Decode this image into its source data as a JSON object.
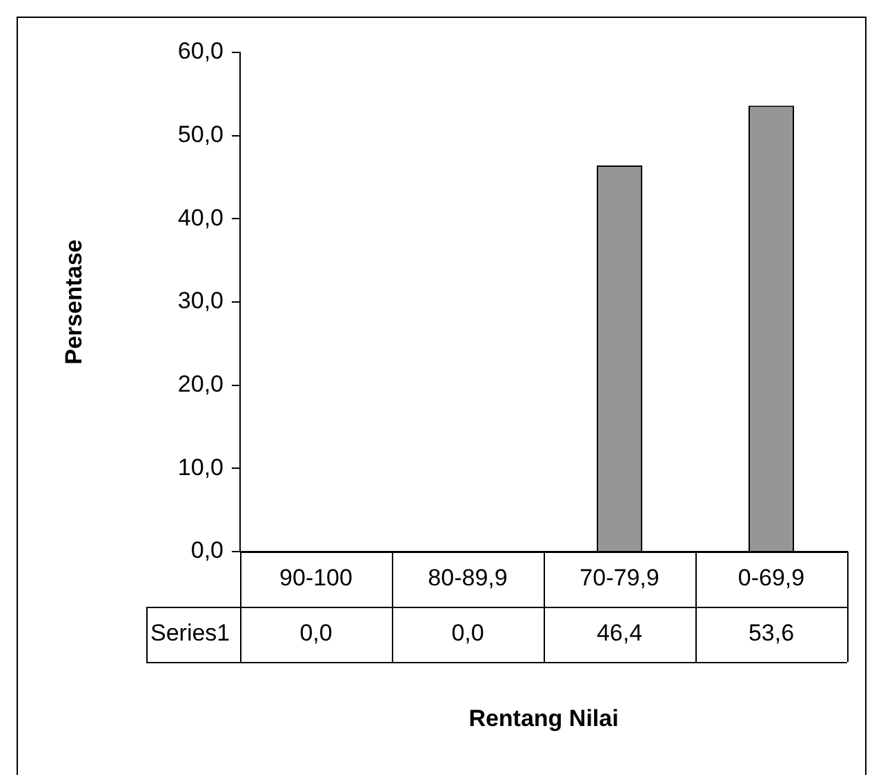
{
  "chart_data": {
    "type": "bar",
    "xlabel": "Rentang Nilai",
    "ylabel": "Persentase",
    "categories": [
      "90-100",
      "80-89,9",
      "70-79,9",
      "0-69,9"
    ],
    "series": [
      {
        "name": "Series1",
        "color": "#969696",
        "values": [
          0.0,
          0.0,
          46.4,
          53.6
        ],
        "value_labels": [
          "0,0",
          "0,0",
          "46,4",
          "53,6"
        ]
      }
    ],
    "ylim": [
      0,
      60
    ],
    "yticks": [
      {
        "value": 0,
        "label": "0,0"
      },
      {
        "value": 10,
        "label": "10,0"
      },
      {
        "value": 20,
        "label": "20,0"
      },
      {
        "value": 30,
        "label": "30,0"
      },
      {
        "value": 40,
        "label": "40,0"
      },
      {
        "value": 50,
        "label": "50,0"
      },
      {
        "value": 60,
        "label": "60,0"
      }
    ],
    "grid": false,
    "legend": false
  }
}
